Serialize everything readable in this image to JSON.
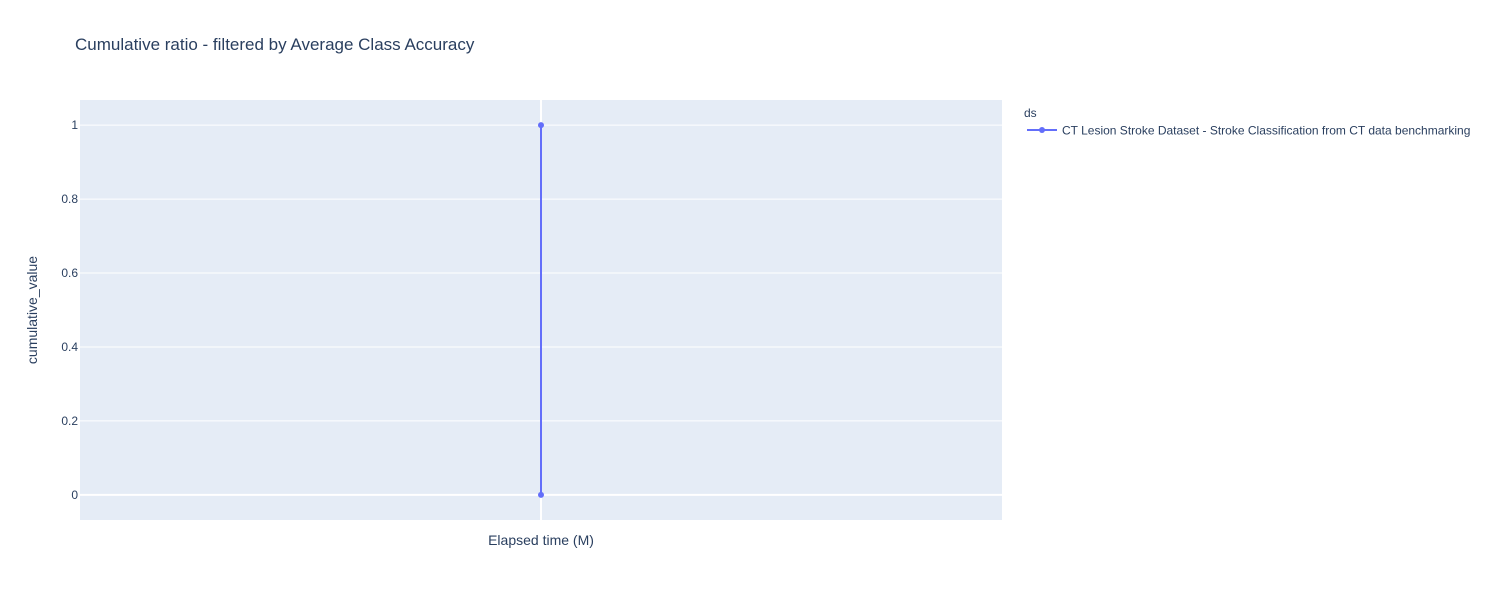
{
  "chart_data": {
    "type": "line",
    "title": "Cumulative ratio - filtered by Average Class Accuracy",
    "xlabel": "Elapsed time (M)",
    "ylabel": "cumulative_value",
    "yticks": [
      "0",
      "0.2",
      "0.4",
      "0.6",
      "0.8",
      "1"
    ],
    "ylim": [
      -0.068,
      1.068
    ],
    "grid": true,
    "legend_title": "ds",
    "legend_position": "right",
    "colors": {
      "plot_bg": "#e5ecf6",
      "grid": "#ffffff",
      "series": "#636efa",
      "text": "#2a3f5f"
    },
    "series": [
      {
        "name": "CT Lesion Stroke Dataset - Stroke Classification from CT data benchmarking",
        "x": [
          0,
          0
        ],
        "y": [
          0,
          1
        ]
      }
    ]
  }
}
